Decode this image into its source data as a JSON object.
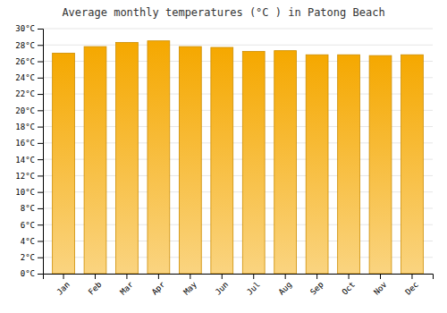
{
  "chart_data": {
    "type": "bar",
    "title": "Average monthly temperatures (°C ) in Patong Beach",
    "categories": [
      "Jan",
      "Feb",
      "Mar",
      "Apr",
      "May",
      "Jun",
      "Jul",
      "Aug",
      "Sep",
      "Oct",
      "Nov",
      "Dec"
    ],
    "values": [
      27.0,
      27.8,
      28.3,
      28.5,
      27.8,
      27.7,
      27.2,
      27.3,
      26.8,
      26.8,
      26.7,
      26.8
    ],
    "color": "#F5A800",
    "ylim": [
      0,
      30
    ],
    "yticks": [
      {
        "value": 0,
        "label": "0°C"
      },
      {
        "value": 2,
        "label": "2°C"
      },
      {
        "value": 4,
        "label": "4°C"
      },
      {
        "value": 6,
        "label": "6°C"
      },
      {
        "value": 8,
        "label": "8°C"
      },
      {
        "value": 10,
        "label": "10°C"
      },
      {
        "value": 12,
        "label": "12°C"
      },
      {
        "value": 14,
        "label": "14°C"
      },
      {
        "value": 16,
        "label": "16°C"
      },
      {
        "value": 18,
        "label": "18°C"
      },
      {
        "value": 20,
        "label": "20°C"
      },
      {
        "value": 22,
        "label": "22°C"
      },
      {
        "value": 24,
        "label": "24°C"
      },
      {
        "value": 26,
        "label": "26°C"
      },
      {
        "value": 28,
        "label": "28°C"
      },
      {
        "value": 30,
        "label": "30°C"
      }
    ],
    "grid": true
  }
}
